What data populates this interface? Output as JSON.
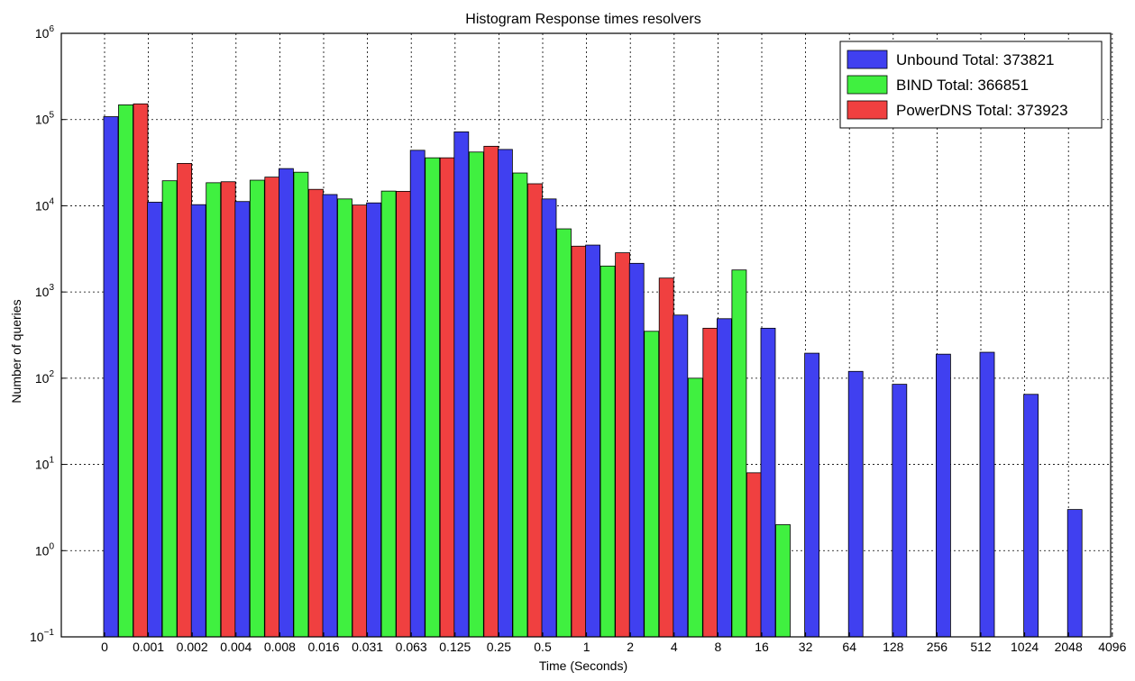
{
  "chart_data": {
    "type": "bar",
    "title": "Histogram Response times resolvers",
    "xlabel": "Time (Seconds)",
    "ylabel": "Number of queries",
    "y_scale": "log",
    "ylim": [
      0.1,
      1000000
    ],
    "y_ticks": [
      {
        "value": 0.1,
        "base": "10",
        "exp": "−1"
      },
      {
        "value": 1,
        "base": "10",
        "exp": "0"
      },
      {
        "value": 10,
        "base": "10",
        "exp": "1"
      },
      {
        "value": 100,
        "base": "10",
        "exp": "2"
      },
      {
        "value": 1000,
        "base": "10",
        "exp": "3"
      },
      {
        "value": 10000,
        "base": "10",
        "exp": "4"
      },
      {
        "value": 100000,
        "base": "10",
        "exp": "5"
      },
      {
        "value": 1000000,
        "base": "10",
        "exp": "6"
      }
    ],
    "x_ticks": [
      "0",
      "0.001",
      "0.002",
      "0.004",
      "0.008",
      "0.016",
      "0.031",
      "0.063",
      "0.125",
      "0.25",
      "0.5",
      "1",
      "2",
      "4",
      "8",
      "16",
      "32",
      "64",
      "128",
      "256",
      "512",
      "1024",
      "2048",
      "4096"
    ],
    "grid": true,
    "legend_position": "top-right",
    "colors": {
      "unbound": "#4040f0",
      "bind": "#40f040",
      "powerdns": "#f04040"
    },
    "series": [
      {
        "name": "Unbound Total: 373821",
        "color": "#4040f0",
        "values": [
          108000,
          11000,
          10300,
          11200,
          27000,
          13500,
          10800,
          44000,
          72000,
          45000,
          12000,
          3500,
          2150,
          540,
          490,
          380,
          195,
          120,
          85,
          190,
          200,
          65,
          3
        ]
      },
      {
        "name": "BIND Total: 366851",
        "color": "#40f040",
        "values": [
          148000,
          19500,
          18500,
          19800,
          24500,
          12000,
          14800,
          36000,
          42000,
          24000,
          5400,
          2000,
          350,
          100,
          1800,
          2,
          null,
          null,
          null,
          null,
          null,
          null,
          null
        ]
      },
      {
        "name": "PowerDNS Total: 373923",
        "color": "#f04040",
        "values": [
          152000,
          31000,
          19000,
          21500,
          15500,
          10200,
          14700,
          36000,
          49000,
          18000,
          3400,
          2850,
          1450,
          380,
          8,
          null,
          null,
          null,
          null,
          null,
          null,
          null,
          null
        ]
      }
    ]
  }
}
